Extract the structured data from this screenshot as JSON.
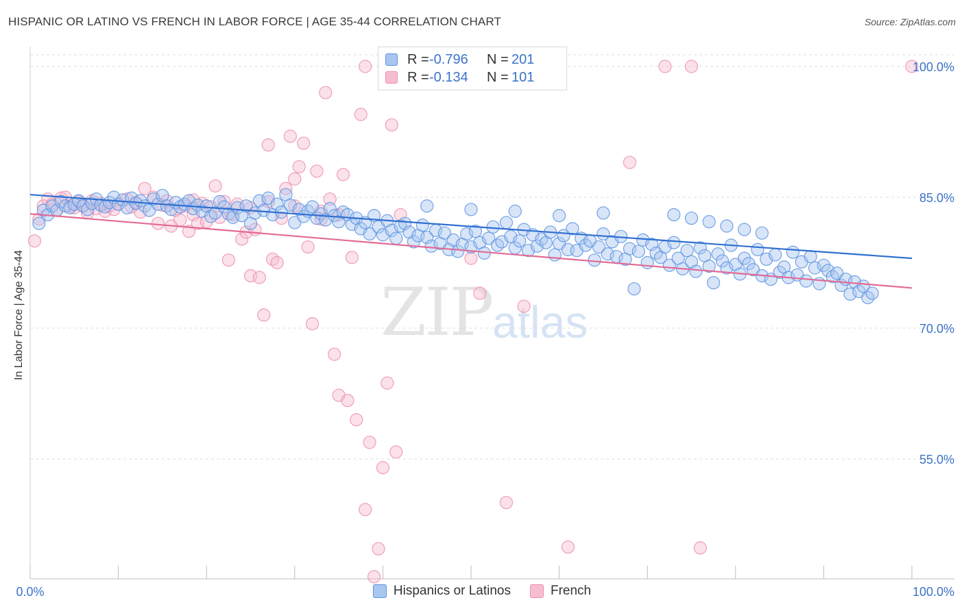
{
  "title": "HISPANIC OR LATINO VS FRENCH IN LABOR FORCE | AGE 35-44 CORRELATION CHART",
  "source": "Source: ZipAtlas.com",
  "watermark": {
    "zip": "ZIP",
    "atlas": "atlas"
  },
  "legend": {
    "rows": [
      {
        "r_label": "R =",
        "r_value": "-0.796",
        "n_label": "N =",
        "n_value": "201"
      },
      {
        "r_label": "R =",
        "r_value": "-0.134",
        "n_label": "N =",
        "n_value": "101"
      }
    ]
  },
  "chart_data": {
    "type": "scatter",
    "ylabel": "In Labor Force | Age 35-44",
    "xlim": [
      0,
      100
    ],
    "ylim": [
      42,
      102
    ],
    "x_tick_labels": [
      "0.0%",
      "100.0%"
    ],
    "y_ticks": [
      {
        "value": 100,
        "label": "100.0%"
      },
      {
        "value": 85,
        "label": "85.0%"
      },
      {
        "value": 70,
        "label": "70.0%"
      },
      {
        "value": 55,
        "label": "55.0%"
      }
    ],
    "grid": "horizontal dashed",
    "legend_position": "top-center",
    "colors": {
      "blue": "#5b93e0",
      "blue_fill": "#a9c6ef",
      "blue_line": "#2f6fd0",
      "pink": "#ec8fae",
      "pink_fill": "#f6bcd0",
      "pink_line": "#e26a95"
    },
    "series": [
      {
        "name": "Hispanics or Latinos",
        "color": "#5b93e0",
        "trend": {
          "x": [
            0,
            100
          ],
          "y": [
            85.3,
            78.0
          ]
        },
        "points": [
          [
            1,
            82.0
          ],
          [
            1.5,
            83.5
          ],
          [
            2,
            83.0
          ],
          [
            2.5,
            84.0
          ],
          [
            3,
            83.5
          ],
          [
            3.5,
            84.5
          ],
          [
            4,
            84.0
          ],
          [
            4.5,
            83.8
          ],
          [
            5,
            84.2
          ],
          [
            5.5,
            84.6
          ],
          [
            6,
            84.0
          ],
          [
            6.5,
            83.6
          ],
          [
            7,
            84.3
          ],
          [
            7.5,
            84.8
          ],
          [
            8,
            84.1
          ],
          [
            8.5,
            83.9
          ],
          [
            9,
            84.4
          ],
          [
            9.5,
            85.0
          ],
          [
            10,
            84.2
          ],
          [
            10.5,
            84.7
          ],
          [
            11,
            83.8
          ],
          [
            11.5,
            84.9
          ],
          [
            12,
            84.3
          ],
          [
            12.5,
            84.6
          ],
          [
            13,
            84.0
          ],
          [
            13.5,
            83.5
          ],
          [
            14,
            84.8
          ],
          [
            14.5,
            84.2
          ],
          [
            15,
            85.2
          ],
          [
            15.5,
            84.0
          ],
          [
            16,
            83.6
          ],
          [
            16.5,
            84.4
          ],
          [
            17,
            83.9
          ],
          [
            17.5,
            84.2
          ],
          [
            18,
            84.6
          ],
          [
            18.5,
            83.7
          ],
          [
            19,
            84.1
          ],
          [
            19.5,
            83.4
          ],
          [
            20,
            84.0
          ],
          [
            20.5,
            82.8
          ],
          [
            21,
            83.2
          ],
          [
            21.5,
            84.5
          ],
          [
            22,
            83.9
          ],
          [
            22.5,
            83.1
          ],
          [
            23,
            82.7
          ],
          [
            23.5,
            83.8
          ],
          [
            24,
            82.9
          ],
          [
            24.5,
            84.0
          ],
          [
            25,
            82.0
          ],
          [
            25.5,
            83.2
          ],
          [
            26,
            84.6
          ],
          [
            26.5,
            83.5
          ],
          [
            27,
            84.9
          ],
          [
            27.5,
            83.0
          ],
          [
            28,
            84.2
          ],
          [
            28.5,
            83.3
          ],
          [
            29,
            85.3
          ],
          [
            29.5,
            84.1
          ],
          [
            30,
            82.1
          ],
          [
            30.5,
            83.6
          ],
          [
            31,
            82.8
          ],
          [
            31.5,
            83.4
          ],
          [
            32,
            83.9
          ],
          [
            32.5,
            82.6
          ],
          [
            33,
            83.1
          ],
          [
            33.5,
            82.4
          ],
          [
            34,
            83.7
          ],
          [
            34.5,
            82.9
          ],
          [
            35,
            82.2
          ],
          [
            35.5,
            83.3
          ],
          [
            36,
            83.0
          ],
          [
            36.5,
            81.9
          ],
          [
            37,
            82.6
          ],
          [
            37.5,
            81.4
          ],
          [
            38,
            82.1
          ],
          [
            38.5,
            80.8
          ],
          [
            39,
            82.9
          ],
          [
            39.5,
            81.6
          ],
          [
            40,
            80.7
          ],
          [
            40.5,
            82.3
          ],
          [
            41,
            81.2
          ],
          [
            41.5,
            80.3
          ],
          [
            42,
            81.7
          ],
          [
            42.5,
            82.0
          ],
          [
            43,
            81.0
          ],
          [
            43.5,
            79.9
          ],
          [
            44,
            80.6
          ],
          [
            44.5,
            81.8
          ],
          [
            45,
            80.4
          ],
          [
            45.5,
            79.4
          ],
          [
            46,
            81.2
          ],
          [
            46.5,
            79.7
          ],
          [
            47,
            80.9
          ],
          [
            47.5,
            79.0
          ],
          [
            48,
            80.1
          ],
          [
            48.5,
            78.8
          ],
          [
            49,
            79.6
          ],
          [
            49.5,
            80.8
          ],
          [
            50,
            79.3
          ],
          [
            50.5,
            81.1
          ],
          [
            51,
            79.8
          ],
          [
            51.5,
            78.6
          ],
          [
            52,
            80.3
          ],
          [
            52.5,
            81.6
          ],
          [
            53,
            79.5
          ],
          [
            53.5,
            79.9
          ],
          [
            54,
            82.1
          ],
          [
            54.5,
            80.5
          ],
          [
            55,
            79.2
          ],
          [
            55.5,
            80.0
          ],
          [
            56,
            81.3
          ],
          [
            56.5,
            78.9
          ],
          [
            57,
            80.7
          ],
          [
            57.5,
            79.4
          ],
          [
            58,
            80.2
          ],
          [
            58.5,
            79.8
          ],
          [
            59,
            81.0
          ],
          [
            59.5,
            78.4
          ],
          [
            60,
            79.7
          ],
          [
            60.5,
            80.6
          ],
          [
            61,
            79.0
          ],
          [
            61.5,
            81.4
          ],
          [
            62,
            78.9
          ],
          [
            62.5,
            80.3
          ],
          [
            63,
            79.5
          ],
          [
            63.5,
            80.0
          ],
          [
            64,
            77.8
          ],
          [
            64.5,
            79.3
          ],
          [
            65,
            80.8
          ],
          [
            65.5,
            78.5
          ],
          [
            66,
            79.9
          ],
          [
            66.5,
            78.2
          ],
          [
            67,
            80.5
          ],
          [
            67.5,
            77.9
          ],
          [
            68,
            79.1
          ],
          [
            68.5,
            74.5
          ],
          [
            69,
            78.8
          ],
          [
            69.5,
            80.1
          ],
          [
            70,
            77.5
          ],
          [
            70.5,
            79.6
          ],
          [
            71,
            78.6
          ],
          [
            71.5,
            78.1
          ],
          [
            72,
            79.3
          ],
          [
            72.5,
            77.2
          ],
          [
            73,
            79.8
          ],
          [
            73.5,
            78.0
          ],
          [
            74,
            76.8
          ],
          [
            74.5,
            78.9
          ],
          [
            75,
            77.6
          ],
          [
            75.5,
            76.5
          ],
          [
            76,
            79.2
          ],
          [
            76.5,
            78.3
          ],
          [
            77,
            77.1
          ],
          [
            77.5,
            75.2
          ],
          [
            78,
            78.5
          ],
          [
            78.5,
            77.7
          ],
          [
            79,
            76.9
          ],
          [
            79.5,
            79.5
          ],
          [
            80,
            77.3
          ],
          [
            80.5,
            76.2
          ],
          [
            81,
            78.0
          ],
          [
            81.5,
            77.4
          ],
          [
            82,
            76.7
          ],
          [
            82.5,
            79.0
          ],
          [
            83,
            76.0
          ],
          [
            83.5,
            77.9
          ],
          [
            84,
            75.6
          ],
          [
            84.5,
            78.4
          ],
          [
            85,
            76.4
          ],
          [
            85.5,
            77.0
          ],
          [
            86,
            75.8
          ],
          [
            86.5,
            78.7
          ],
          [
            87,
            76.1
          ],
          [
            87.5,
            77.6
          ],
          [
            88,
            75.4
          ],
          [
            88.5,
            78.2
          ],
          [
            89,
            76.9
          ],
          [
            89.5,
            75.1
          ],
          [
            90,
            77.2
          ],
          [
            90.5,
            76.6
          ],
          [
            91,
            75.9
          ],
          [
            91.5,
            76.3
          ],
          [
            92,
            74.9
          ],
          [
            92.5,
            75.6
          ],
          [
            93,
            73.9
          ],
          [
            93.5,
            75.3
          ],
          [
            94,
            74.2
          ],
          [
            94.5,
            74.8
          ],
          [
            95,
            73.5
          ],
          [
            95.5,
            74.0
          ],
          [
            73,
            83.0
          ],
          [
            75,
            82.6
          ],
          [
            77,
            82.2
          ],
          [
            79,
            81.7
          ],
          [
            81,
            81.3
          ],
          [
            83,
            80.9
          ],
          [
            65,
            83.2
          ],
          [
            60,
            82.9
          ],
          [
            55,
            83.4
          ],
          [
            50,
            83.6
          ],
          [
            45,
            84.0
          ]
        ]
      },
      {
        "name": "French",
        "color": "#ec8fae",
        "trend": {
          "x": [
            0,
            100
          ],
          "y": [
            83.1,
            74.6
          ]
        },
        "points": [
          [
            0.5,
            80.0
          ],
          [
            1,
            82.5
          ],
          [
            1.5,
            84.0
          ],
          [
            2,
            84.8
          ],
          [
            2.5,
            84.2
          ],
          [
            3,
            83.5
          ],
          [
            3.5,
            84.9
          ],
          [
            4,
            85.0
          ],
          [
            4.5,
            84.0
          ],
          [
            5,
            83.8
          ],
          [
            5.5,
            84.5
          ],
          [
            6,
            84.1
          ],
          [
            6.5,
            83.2
          ],
          [
            7,
            84.6
          ],
          [
            7.5,
            83.7
          ],
          [
            8,
            84.3
          ],
          [
            8.5,
            83.4
          ],
          [
            9,
            84.0
          ],
          [
            9.5,
            83.6
          ],
          [
            10,
            84.2
          ],
          [
            11,
            84.8
          ],
          [
            11.5,
            83.9
          ],
          [
            12,
            84.4
          ],
          [
            12.5,
            83.3
          ],
          [
            13,
            86.0
          ],
          [
            14,
            85.0
          ],
          [
            14.5,
            82.0
          ],
          [
            15,
            84.1
          ],
          [
            15.5,
            84.6
          ],
          [
            16,
            81.7
          ],
          [
            16.5,
            83.5
          ],
          [
            17,
            82.4
          ],
          [
            17.5,
            84.0
          ],
          [
            18,
            81.1
          ],
          [
            18.5,
            83.0
          ],
          [
            19,
            82.0
          ],
          [
            19.5,
            84.3
          ],
          [
            20,
            82.2
          ],
          [
            20.5,
            83.9
          ],
          [
            21,
            86.3
          ],
          [
            21.5,
            82.7
          ],
          [
            22,
            84.5
          ],
          [
            22.5,
            77.8
          ],
          [
            23,
            83.0
          ],
          [
            23.5,
            84.2
          ],
          [
            24,
            80.2
          ],
          [
            24.5,
            81.0
          ],
          [
            25,
            76.0
          ],
          [
            25.5,
            81.3
          ],
          [
            26,
            75.8
          ],
          [
            26.5,
            71.5
          ],
          [
            27,
            91.0
          ],
          [
            27.5,
            77.9
          ],
          [
            28,
            77.5
          ],
          [
            28.5,
            82.6
          ],
          [
            29,
            86.0
          ],
          [
            29.5,
            92.0
          ],
          [
            30,
            87.1
          ],
          [
            30.5,
            88.5
          ],
          [
            31,
            91.2
          ],
          [
            31.5,
            79.3
          ],
          [
            32,
            70.5
          ],
          [
            32.5,
            88.0
          ],
          [
            33,
            83.4
          ],
          [
            33.5,
            97.0
          ],
          [
            34,
            84.8
          ],
          [
            34.5,
            67.0
          ],
          [
            35,
            62.3
          ],
          [
            35.5,
            87.6
          ],
          [
            36,
            61.7
          ],
          [
            36.5,
            78.1
          ],
          [
            37,
            59.5
          ],
          [
            37.5,
            94.5
          ],
          [
            38,
            49.2
          ],
          [
            38.5,
            56.9
          ],
          [
            39,
            41.5
          ],
          [
            39.5,
            44.7
          ],
          [
            40,
            54.0
          ],
          [
            40.5,
            63.7
          ],
          [
            41,
            93.3
          ],
          [
            41.5,
            55.8
          ],
          [
            42,
            83.0
          ],
          [
            45,
            100.0
          ],
          [
            46,
            100.0
          ],
          [
            50,
            78.0
          ],
          [
            51,
            74.0
          ],
          [
            54,
            50.0
          ],
          [
            56,
            72.5
          ],
          [
            61,
            44.9
          ],
          [
            68,
            89.0
          ],
          [
            72,
            100.0
          ],
          [
            75,
            100.0
          ],
          [
            76,
            44.8
          ],
          [
            100,
            100.0
          ],
          [
            38,
            100.0
          ],
          [
            30,
            84.0
          ],
          [
            35,
            83.0
          ],
          [
            27,
            84.5
          ],
          [
            25,
            83.8
          ],
          [
            33,
            82.5
          ],
          [
            18.5,
            84.7
          ]
        ]
      }
    ]
  },
  "bottom_legend": [
    {
      "label": "Hispanics or Latinos"
    },
    {
      "label": "French"
    }
  ]
}
